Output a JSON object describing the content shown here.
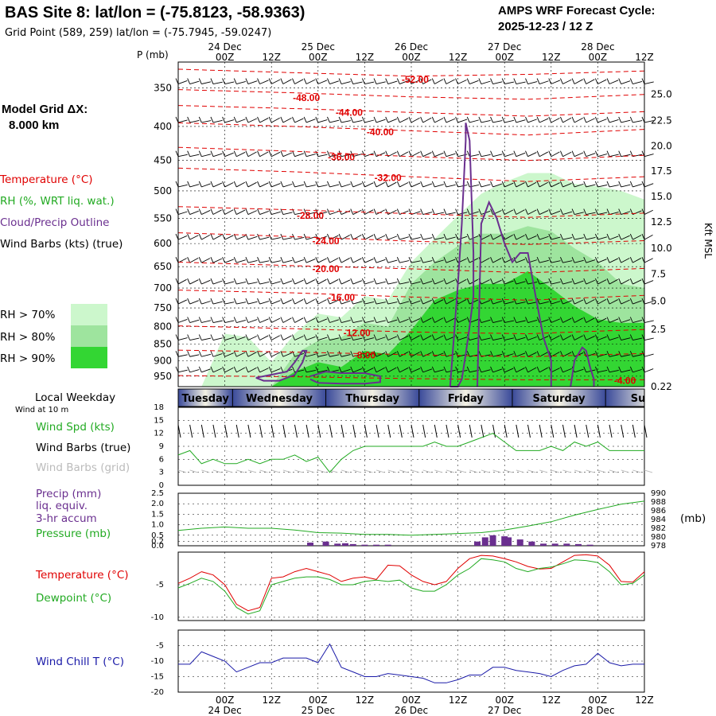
{
  "header": {
    "title": "BAS Site 8:  lat/lon = (-75.8123, -58.9363)",
    "grid_point": "Grid Point (589, 259) lat/lon = (-75.7945, -59.0247)",
    "forecast_label": "AMPS WRF Forecast Cycle:",
    "forecast_cycle": "2025-12-23 / 12  Z",
    "model_grid_label": "Model Grid ΔX:",
    "model_grid_value": "8.000 km"
  },
  "colors": {
    "temperature": "#e00000",
    "rh": "#22aa22",
    "cloud": "#6a2f8f",
    "wind_chill": "#1a1aa8",
    "rh70": "#ccf7cc",
    "rh80": "#9ee49e",
    "rh90": "#33d633"
  },
  "time_axis": {
    "labels": [
      "00Z",
      "12Z",
      "00Z",
      "12Z",
      "00Z",
      "12Z",
      "00Z",
      "12Z",
      "00Z",
      "12Z"
    ],
    "hours": [
      12,
      24,
      36,
      48,
      60,
      72,
      84,
      96,
      108,
      120
    ],
    "dates": [
      {
        "label": "24 Dec",
        "hour": 12
      },
      {
        "label": "25 Dec",
        "hour": 36
      },
      {
        "label": "26 Dec",
        "hour": 60
      },
      {
        "label": "27 Dec",
        "hour": 84
      },
      {
        "label": "28 Dec",
        "hour": 108
      }
    ],
    "hour_range": [
      0,
      120
    ]
  },
  "cross_section": {
    "pressure_label": "P (mb)",
    "pressure_levels": [
      350,
      400,
      450,
      500,
      550,
      600,
      650,
      700,
      750,
      800,
      850,
      900,
      950
    ],
    "pressure_range": [
      320,
      985
    ],
    "height_label": "Kft MSL",
    "heights": [
      {
        "label": "25.0",
        "p": 358
      },
      {
        "label": "22.5",
        "p": 392
      },
      {
        "label": "20.0",
        "p": 428
      },
      {
        "label": "17.5",
        "p": 467
      },
      {
        "label": "15.0",
        "p": 510
      },
      {
        "label": "12.5",
        "p": 557
      },
      {
        "label": "10.0",
        "p": 610
      },
      {
        "label": "7.5",
        "p": 667
      },
      {
        "label": "5.0",
        "p": 732
      },
      {
        "label": "2.5",
        "p": 808
      },
      {
        "label": "0.22",
        "p": 985
      }
    ],
    "legend": {
      "temperature": "Temperature (°C)",
      "rh": "RH (%, WRT liq. wat.)",
      "cloud": "Cloud/Precip Outline",
      "wind": "Wind Barbs (kts) (true)",
      "rh70": "RH > 70%",
      "rh80": "RH > 80%",
      "rh90": "RH > 90%"
    },
    "isotherms": [
      {
        "label": "-52.00",
        "t": -52,
        "label_hour": 61,
        "label_p": 340,
        "p": [
          328,
          332,
          336,
          334,
          330
        ]
      },
      {
        "label": "-48.00",
        "t": -48,
        "label_hour": 33,
        "label_p": 362,
        "p": [
          352,
          356,
          361,
          364,
          358
        ]
      },
      {
        "label": "-44.00",
        "t": -44,
        "label_hour": 44,
        "label_p": 381,
        "p": [
          372,
          376,
          381,
          386,
          380
        ]
      },
      {
        "label": "-40.00",
        "t": -40,
        "label_hour": 52,
        "label_p": 408,
        "p": [
          395,
          400,
          406,
          412,
          404
        ]
      },
      {
        "label": "-36.00",
        "t": -36,
        "label_hour": 42,
        "label_p": 445,
        "p": [
          430,
          436,
          444,
          450,
          442
        ]
      },
      {
        "label": "-32.00",
        "t": -32,
        "label_hour": 54,
        "label_p": 478,
        "p": [
          462,
          468,
          476,
          484,
          476
        ]
      },
      {
        "label": "-28.00",
        "t": -28,
        "label_hour": 34,
        "label_p": 545,
        "p": [
          528,
          534,
          541,
          548,
          540
        ]
      },
      {
        "label": "-24.00",
        "t": -24,
        "label_hour": 38,
        "label_p": 595,
        "p": [
          578,
          586,
          595,
          602,
          594
        ]
      },
      {
        "label": "-20.00",
        "t": -20,
        "label_hour": 38,
        "label_p": 655,
        "p": [
          640,
          648,
          655,
          664,
          654
        ]
      },
      {
        "label": "-16.00",
        "t": -16,
        "label_hour": 42,
        "label_p": 723,
        "p": [
          705,
          712,
          722,
          730,
          718
        ]
      },
      {
        "label": "-12.00",
        "t": -12,
        "label_hour": 46,
        "label_p": 818,
        "p": [
          798,
          806,
          815,
          820,
          808
        ]
      },
      {
        "label": "-8.00",
        "t": -8,
        "label_hour": 48,
        "label_p": 883,
        "p": [
          868,
          874,
          882,
          888,
          878
        ]
      },
      {
        "label": "-4.00",
        "t": -4,
        "label_hour": 115,
        "label_p": 965,
        "p": [
          948,
          952,
          958,
          962,
          962
        ]
      }
    ],
    "isotherm_hours": [
      0,
      30,
      60,
      90,
      120
    ],
    "rh_regions": [
      {
        "level": 70,
        "hours": [
          0,
          6,
          12,
          18,
          24,
          30,
          36,
          42,
          48,
          54,
          60,
          66,
          72,
          78,
          84,
          90,
          96,
          102,
          108,
          114,
          120
        ],
        "top": [
          985,
          985,
          820,
          830,
          905,
          820,
          765,
          775,
          720,
          730,
          640,
          590,
          545,
          505,
          485,
          470,
          470,
          488,
          492,
          500,
          515
        ]
      },
      {
        "level": 80,
        "hours": [
          0,
          6,
          12,
          18,
          24,
          30,
          36,
          42,
          48,
          54,
          60,
          66,
          72,
          78,
          84,
          90,
          96,
          102,
          108,
          114,
          120
        ],
        "top": [
          985,
          985,
          985,
          985,
          985,
          880,
          840,
          830,
          790,
          800,
          690,
          640,
          605,
          580,
          580,
          565,
          575,
          610,
          640,
          690,
          700
        ]
      },
      {
        "level": 90,
        "hours": [
          0,
          6,
          12,
          18,
          24,
          30,
          36,
          42,
          48,
          54,
          60,
          66,
          72,
          78,
          84,
          90,
          96,
          102,
          108,
          114,
          120
        ],
        "top": [
          985,
          985,
          985,
          985,
          985,
          935,
          905,
          920,
          870,
          880,
          810,
          730,
          705,
          690,
          690,
          660,
          700,
          745,
          780,
          790,
          790
        ]
      }
    ],
    "cloud_outlines": [
      {
        "hours": [
          20,
          24,
          28,
          30,
          32,
          33,
          32,
          30,
          26,
          22,
          20
        ],
        "p": [
          955,
          945,
          935,
          905,
          870,
          870,
          905,
          945,
          965,
          965,
          955
        ]
      },
      {
        "hours": [
          34,
          38,
          42,
          48,
          52,
          52,
          48,
          42,
          36,
          34
        ],
        "p": [
          950,
          935,
          940,
          940,
          950,
          970,
          975,
          975,
          972,
          960
        ]
      },
      {
        "hours": [
          70,
          72,
          73,
          74,
          74,
          75,
          76,
          76,
          75,
          74,
          73,
          72,
          70
        ],
        "p": [
          985,
          690,
          560,
          420,
          395,
          420,
          620,
          720,
          800,
          880,
          960,
          985,
          985
        ]
      },
      {
        "hours": [
          77,
          78,
          80,
          82,
          84,
          86,
          88,
          90,
          92,
          94,
          96,
          96
        ],
        "p": [
          985,
          560,
          520,
          550,
          600,
          640,
          620,
          620,
          720,
          830,
          900,
          985
        ]
      },
      {
        "hours": [
          101,
          102,
          104,
          105,
          106,
          107,
          107
        ],
        "p": [
          985,
          900,
          860,
          870,
          920,
          960,
          985
        ]
      }
    ],
    "wind_barb_hours": [
      0,
      3,
      6,
      9,
      12,
      15,
      18,
      21,
      24,
      27,
      30,
      33,
      36,
      39,
      42,
      45,
      48,
      51,
      54,
      57,
      60,
      63,
      66,
      69,
      72,
      75,
      78,
      81,
      84,
      87,
      90,
      93,
      96,
      99,
      102,
      105,
      108,
      111,
      114,
      117,
      120
    ]
  },
  "weekday_band": {
    "label": "Local Weekday",
    "days": [
      {
        "label": "Tuesday",
        "start": 0,
        "end": 14
      },
      {
        "label": "Wednesday",
        "start": 14,
        "end": 38
      },
      {
        "label": "Thursday",
        "start": 38,
        "end": 62
      },
      {
        "label": "Friday",
        "start": 62,
        "end": 86
      },
      {
        "label": "Saturday",
        "start": 86,
        "end": 110
      },
      {
        "label": "Sunday",
        "start": 110,
        "end": 134
      }
    ]
  },
  "wind_panel": {
    "subtitle": "Wind at 10 m",
    "speed_label": "Wind Spd (kts)",
    "barbs_true_label": "Wind Barbs (true)",
    "barbs_grid_label": "Wind Barbs (grid)",
    "y_ticks": [
      0,
      3,
      6,
      9,
      12,
      15,
      18
    ],
    "y_range": [
      0,
      18
    ],
    "hours": [
      0,
      3,
      6,
      9,
      12,
      15,
      18,
      21,
      24,
      27,
      30,
      33,
      36,
      39,
      42,
      45,
      48,
      51,
      54,
      57,
      60,
      63,
      66,
      69,
      72,
      75,
      78,
      81,
      84,
      87,
      90,
      93,
      96,
      99,
      102,
      105,
      108,
      111,
      114,
      117,
      120
    ],
    "speed": [
      7,
      8,
      5,
      6,
      5,
      5,
      6,
      5,
      6,
      6,
      7,
      5.5,
      6.5,
      3,
      6,
      8,
      9,
      9,
      9,
      9,
      9,
      9,
      10,
      9,
      9,
      10,
      11,
      12,
      10,
      8,
      8,
      8,
      9,
      8,
      10,
      9,
      10,
      8,
      8,
      8,
      8
    ]
  },
  "precip_panel": {
    "label1": "Precip (mm)",
    "label2": "liq. equiv.",
    "label3": "3-hr accum",
    "pressure_label": "Pressure (mb)",
    "unit_label": "(mb)",
    "left_ticks": [
      "0.0",
      "0.2",
      "0.5",
      "1.0",
      "1.5",
      "2.0",
      "2.5"
    ],
    "right_ticks": [
      "978",
      "980",
      "982",
      "984",
      "986",
      "988",
      "990"
    ],
    "hours": [
      0,
      6,
      12,
      18,
      24,
      30,
      36,
      42,
      48,
      54,
      60,
      66,
      72,
      78,
      84,
      90,
      96,
      102,
      108,
      114,
      120
    ],
    "pressure": [
      981.5,
      982,
      982.3,
      982,
      982,
      981.6,
      981,
      980.9,
      980.6,
      980.6,
      980.4,
      980.6,
      980.8,
      981,
      981.6,
      982.5,
      983.5,
      985,
      986.3,
      987.5,
      988.2
    ],
    "precip_hours": [
      34,
      38,
      41,
      43,
      45,
      48,
      51,
      54,
      77,
      79,
      81,
      84,
      85,
      88,
      91,
      94,
      97,
      100,
      103,
      106
    ],
    "precip_mm": [
      0.15,
      0.2,
      0.1,
      0.12,
      0.08,
      0.05,
      0.05,
      0.05,
      0.2,
      0.4,
      0.5,
      0.45,
      0.4,
      0.3,
      0.2,
      0.1,
      0.1,
      0.1,
      0.08,
      0.05
    ]
  },
  "temp_panel": {
    "temp_label": "Temperature (°C)",
    "dew_label": "Dewpoint (°C)",
    "y_ticks": [
      "-5",
      "-10"
    ],
    "y_range": [
      -10.5,
      0
    ],
    "hours": [
      0,
      3,
      6,
      9,
      12,
      15,
      18,
      21,
      24,
      27,
      30,
      33,
      36,
      39,
      42,
      45,
      48,
      51,
      54,
      57,
      60,
      63,
      66,
      69,
      72,
      75,
      78,
      81,
      84,
      87,
      90,
      93,
      96,
      99,
      102,
      105,
      108,
      111,
      114,
      117,
      120
    ],
    "temp": [
      -4.8,
      -4,
      -3,
      -3.5,
      -5,
      -8,
      -9,
      -8.5,
      -4,
      -3.8,
      -3,
      -2.5,
      -3,
      -3.5,
      -4.5,
      -4,
      -3.8,
      -4.2,
      -2,
      -2.1,
      -3.5,
      -4.5,
      -5,
      -4.5,
      -2.5,
      -1,
      -0.5,
      -0.6,
      -1,
      -1.5,
      -2.2,
      -2.6,
      -2.5,
      -1.5,
      -0.5,
      -0.4,
      -0.6,
      -2,
      -4.5,
      -4.6,
      -3
    ],
    "dew": [
      -5.5,
      -4.8,
      -4,
      -4.5,
      -6,
      -8.5,
      -9.5,
      -9,
      -5,
      -4.5,
      -4,
      -3.8,
      -3.8,
      -4.2,
      -5,
      -5,
      -4.5,
      -4.3,
      -4.5,
      -4.3,
      -5.5,
      -6,
      -6,
      -5,
      -3.5,
      -2.5,
      -1,
      -1.2,
      -1.5,
      -2.5,
      -3,
      -2.5,
      -2.3,
      -1.8,
      -1.2,
      -1.3,
      -1.6,
      -3,
      -5,
      -4.8,
      -3.5
    ]
  },
  "chill_panel": {
    "label": "Wind Chill T (°C)",
    "y_ticks": [
      "-5",
      "-10",
      "-15",
      "-20"
    ],
    "y_range": [
      -20,
      0
    ],
    "hours": [
      0,
      3,
      6,
      9,
      12,
      15,
      18,
      21,
      24,
      27,
      30,
      33,
      36,
      39,
      42,
      45,
      48,
      51,
      54,
      57,
      60,
      63,
      66,
      69,
      72,
      75,
      78,
      81,
      84,
      87,
      90,
      93,
      96,
      99,
      102,
      105,
      108,
      111,
      114,
      117,
      120
    ],
    "chill": [
      -11,
      -11,
      -7,
      -8.5,
      -10,
      -13.5,
      -12,
      -10.5,
      -10.5,
      -9,
      -9,
      -9,
      -10.5,
      -4.5,
      -12,
      -13.5,
      -15,
      -15,
      -14,
      -14.5,
      -15,
      -15.5,
      -17,
      -17,
      -16,
      -14.5,
      -14.5,
      -12,
      -12,
      -13,
      -13.5,
      -14,
      -15,
      -13,
      -11.5,
      -11,
      -7.5,
      -10.5,
      -11.5,
      -11,
      -11
    ]
  }
}
